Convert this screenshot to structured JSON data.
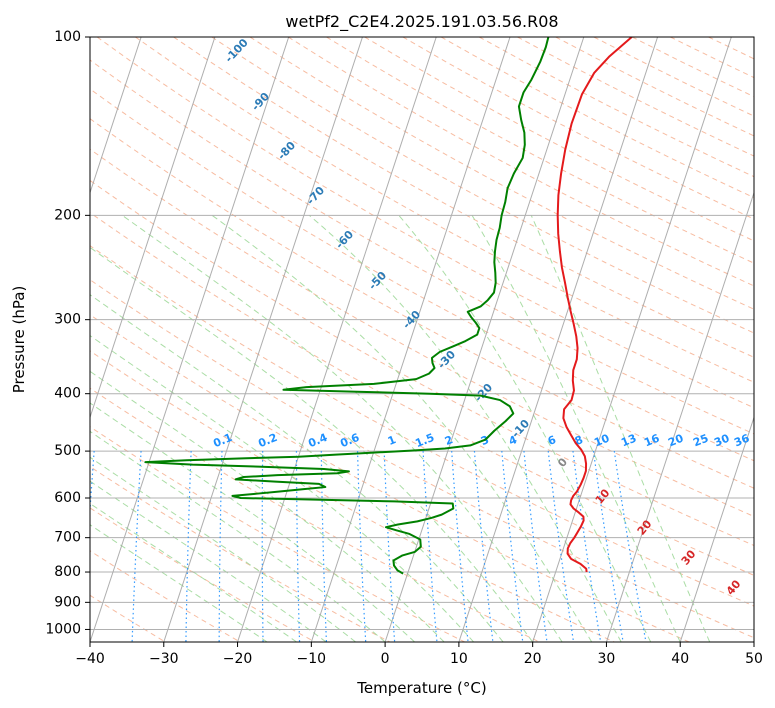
{
  "chart_data": {
    "type": "line",
    "title": "wetPf2_C2E4.2025.191.03.56.R08",
    "xlabel": "Temperature (°C)",
    "ylabel": "Pressure (hPa)",
    "xlim": [
      -40,
      50
    ],
    "ylim": [
      1050,
      100
    ],
    "y_scale": "log",
    "x_ticks": [
      -40,
      -30,
      -20,
      -10,
      0,
      10,
      20,
      30,
      40,
      50
    ],
    "y_ticks": [
      100,
      200,
      300,
      400,
      500,
      600,
      700,
      800,
      900,
      1000
    ],
    "grid": true,
    "skew": "skew-T log-P",
    "colors": {
      "temperature": "#e41a1c",
      "dewpoint": "#008000",
      "isotherm": "#a0a0a0",
      "dry_adiabat": "#f4a582",
      "moist_adiabat": "#a1d99b",
      "mixing_ratio": "#1e90ff",
      "dry_adiabat_label": "#2c7bb6",
      "moist_adiabat_label": "#d62728"
    },
    "series": [
      {
        "key": "temperature",
        "points": [
          [
            24.2,
            800
          ],
          [
            24.0,
            790
          ],
          [
            23.0,
            775
          ],
          [
            21.5,
            760
          ],
          [
            20.8,
            745
          ],
          [
            20.6,
            730
          ],
          [
            20.7,
            715
          ],
          [
            21.0,
            700
          ],
          [
            21.2,
            685
          ],
          [
            21.4,
            670
          ],
          [
            21.5,
            655
          ],
          [
            21.3,
            645
          ],
          [
            20.5,
            635
          ],
          [
            19.6,
            625
          ],
          [
            19.0,
            615
          ],
          [
            18.9,
            605
          ],
          [
            19.0,
            595
          ],
          [
            19.3,
            585
          ],
          [
            19.5,
            570
          ],
          [
            19.6,
            555
          ],
          [
            19.6,
            540
          ],
          [
            19.3,
            525
          ],
          [
            18.8,
            510
          ],
          [
            18.0,
            497
          ],
          [
            17.0,
            485
          ],
          [
            16.0,
            470
          ],
          [
            15.0,
            455
          ],
          [
            14.2,
            440
          ],
          [
            13.9,
            425
          ],
          [
            14.5,
            410
          ],
          [
            14.4,
            395
          ],
          [
            13.8,
            380
          ],
          [
            13.4,
            365
          ],
          [
            13.4,
            350
          ],
          [
            13.0,
            335
          ],
          [
            12.3,
            320
          ],
          [
            11.4,
            305
          ],
          [
            10.4,
            290
          ],
          [
            9.4,
            275
          ],
          [
            8.4,
            260
          ],
          [
            7.3,
            245
          ],
          [
            6.3,
            230
          ],
          [
            5.3,
            215
          ],
          [
            4.4,
            200
          ],
          [
            3.6,
            185
          ],
          [
            3.0,
            170
          ],
          [
            2.5,
            155
          ],
          [
            2.2,
            140
          ],
          [
            2.3,
            125
          ],
          [
            3.0,
            115
          ],
          [
            4.3,
            108
          ],
          [
            6.5,
            100
          ]
        ]
      },
      {
        "key": "dewpoint",
        "points": [
          [
            -0.6,
            805
          ],
          [
            -1.5,
            795
          ],
          [
            -2.2,
            780
          ],
          [
            -2.5,
            765
          ],
          [
            -1.5,
            750
          ],
          [
            0,
            740
          ],
          [
            0.6,
            725
          ],
          [
            0.2,
            705
          ],
          [
            -1.5,
            690
          ],
          [
            -3.5,
            680
          ],
          [
            -5.0,
            672
          ],
          [
            -3.5,
            665
          ],
          [
            -1.0,
            657
          ],
          [
            0.8,
            648
          ],
          [
            2.0,
            640
          ],
          [
            3.3,
            625
          ],
          [
            3.0,
            613
          ],
          [
            -5.0,
            608
          ],
          [
            -15.0,
            604
          ],
          [
            -26.0,
            600
          ],
          [
            -27.2,
            595
          ],
          [
            -24.0,
            590
          ],
          [
            -21.0,
            585
          ],
          [
            -18.0,
            580
          ],
          [
            -15.0,
            575
          ],
          [
            -16.0,
            568
          ],
          [
            -22.0,
            563
          ],
          [
            -27.5,
            558
          ],
          [
            -26.5,
            553
          ],
          [
            -22.0,
            549
          ],
          [
            -14.0,
            545
          ],
          [
            -12.5,
            541
          ],
          [
            -16.0,
            536
          ],
          [
            -25.0,
            531
          ],
          [
            -34.0,
            527
          ],
          [
            -40.5,
            522
          ],
          [
            -35.0,
            518
          ],
          [
            -27.0,
            514
          ],
          [
            -20.0,
            511
          ],
          [
            -15.0,
            507
          ],
          [
            -10.0,
            503
          ],
          [
            -5.0,
            499
          ],
          [
            -0.5,
            495
          ],
          [
            2.8,
            489
          ],
          [
            4.6,
            478
          ],
          [
            5.4,
            462
          ],
          [
            6.5,
            445
          ],
          [
            7.2,
            432
          ],
          [
            6.4,
            420
          ],
          [
            4.8,
            410
          ],
          [
            2.0,
            403
          ],
          [
            -5.0,
            400
          ],
          [
            -15.0,
            397
          ],
          [
            -25.0,
            394
          ],
          [
            -22.0,
            390
          ],
          [
            -13.0,
            385
          ],
          [
            -7.5,
            378
          ],
          [
            -6.0,
            370
          ],
          [
            -5.5,
            362
          ],
          [
            -6.0,
            355
          ],
          [
            -6.3,
            348
          ],
          [
            -5.5,
            340
          ],
          [
            -4.0,
            333
          ],
          [
            -2.5,
            326
          ],
          [
            -1.2,
            318
          ],
          [
            -1.2,
            310
          ],
          [
            -2.0,
            303
          ],
          [
            -2.8,
            297
          ],
          [
            -3.5,
            291
          ],
          [
            -2.0,
            285
          ],
          [
            -1.3,
            278
          ],
          [
            -0.8,
            270
          ],
          [
            -1.0,
            260
          ],
          [
            -1.5,
            250
          ],
          [
            -2.1,
            240
          ],
          [
            -2.5,
            230
          ],
          [
            -2.8,
            220
          ],
          [
            -2.9,
            210
          ],
          [
            -3.2,
            200
          ],
          [
            -3.3,
            190
          ],
          [
            -3.6,
            180
          ],
          [
            -3.4,
            170
          ],
          [
            -2.9,
            160
          ],
          [
            -3.2,
            152
          ],
          [
            -3.8,
            145
          ],
          [
            -4.8,
            138
          ],
          [
            -5.7,
            131
          ],
          [
            -5.7,
            124
          ],
          [
            -5.2,
            118
          ],
          [
            -4.8,
            110
          ],
          [
            -4.7,
            104
          ],
          [
            -4.8,
            100
          ]
        ]
      }
    ],
    "dry_adiabat_labels": [
      "-100",
      "-90",
      "-80",
      "-70",
      "-60",
      "-50",
      "-40",
      "-30",
      "-20",
      "-10"
    ],
    "moist_adiabat_labels": [
      "0",
      "10",
      "20",
      "30",
      "40"
    ],
    "mixing_ratio_labels": [
      "0.1",
      "0.2",
      "0.4",
      "0.6",
      "1",
      "1.5",
      "2",
      "3",
      "4",
      "6",
      "8",
      "10",
      "13",
      "16",
      "20",
      "25",
      "30",
      "36"
    ]
  }
}
